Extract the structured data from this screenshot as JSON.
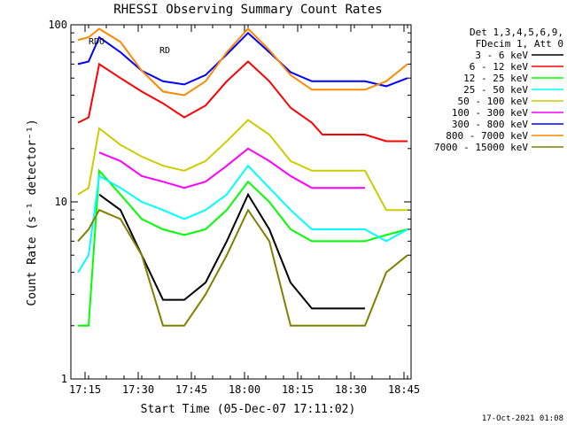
{
  "chart_data": {
    "type": "line",
    "title": "RHESSI Observing Summary Count Rates",
    "xlabel": "Start Time (05-Dec-07 17:11:02)",
    "ylabel": "Count Rate (s⁻¹ detector⁻¹)",
    "y_scale": "log",
    "ylim": [
      1,
      100
    ],
    "xlim_minutes": [
      0,
      96
    ],
    "x_ticks": [
      "17:15",
      "17:30",
      "17:45",
      "18:00",
      "18:15",
      "18:30",
      "18:45"
    ],
    "y_ticks": [
      "1",
      "10",
      "100"
    ],
    "grid": false,
    "legend_position": "right",
    "legend_header": [
      "Det 1,3,4,5,6,9,",
      "FDecim 1, Att 0"
    ],
    "footer_timestamp": "17-Oct-2021 01:08",
    "annotations": [
      "RDO",
      "RD"
    ],
    "x": [
      "17:13",
      "17:16",
      "17:19",
      "17:25",
      "17:31",
      "17:37",
      "17:43",
      "17:49",
      "17:55",
      "18:01",
      "18:07",
      "18:13",
      "18:19",
      "18:22",
      "18:28",
      "18:34",
      "18:40",
      "18:46"
    ],
    "series": [
      {
        "name": "3 - 6 keV",
        "color": "#000000",
        "values": [
          null,
          null,
          11,
          9,
          5,
          2.8,
          2.8,
          3.5,
          6,
          11,
          7,
          3.5,
          2.5,
          2.5,
          2.5,
          2.5,
          null,
          null
        ]
      },
      {
        "name": "6 - 12 keV",
        "color": "#ff0000",
        "values": [
          28,
          30,
          60,
          50,
          42,
          36,
          30,
          35,
          48,
          62,
          48,
          34,
          28,
          24,
          24,
          24,
          22,
          22
        ]
      },
      {
        "name": "12 - 25 keV",
        "color": "#00ff00",
        "values": [
          2,
          2,
          15,
          11,
          8,
          7,
          6.5,
          7,
          9,
          13,
          10,
          7,
          6,
          6,
          6,
          6,
          6.5,
          7
        ]
      },
      {
        "name": "25 - 50 keV",
        "color": "#00ffff",
        "values": [
          4,
          5,
          14,
          12,
          10,
          9,
          8,
          9,
          11,
          16,
          12,
          9,
          7,
          7,
          7,
          7,
          6,
          7
        ]
      },
      {
        "name": "50 - 100 keV",
        "color": "#cccc00",
        "values": [
          11,
          12,
          26,
          21,
          18,
          16,
          15,
          17,
          22,
          29,
          24,
          17,
          15,
          15,
          15,
          15,
          9,
          9
        ]
      },
      {
        "name": "100 - 300 keV",
        "color": "#ff00ff",
        "values": [
          null,
          null,
          19,
          17,
          14,
          13,
          12,
          13,
          16,
          20,
          17,
          14,
          12,
          12,
          12,
          12,
          null,
          null
        ]
      },
      {
        "name": "300 - 800 keV",
        "color": "#0000ff",
        "values": [
          60,
          62,
          85,
          70,
          55,
          48,
          46,
          52,
          68,
          90,
          70,
          54,
          48,
          48,
          48,
          48,
          45,
          50
        ]
      },
      {
        "name": "800 - 7000 keV",
        "color": "#ff8800",
        "values": [
          82,
          85,
          95,
          80,
          55,
          42,
          40,
          48,
          70,
          95,
          72,
          52,
          43,
          43,
          43,
          43,
          48,
          60
        ]
      },
      {
        "name": "7000 - 15000 keV",
        "color": "#808000",
        "values": [
          6,
          7,
          9,
          8,
          5,
          2,
          2,
          3,
          5,
          9,
          6,
          2,
          2,
          2,
          2,
          2,
          4,
          5
        ]
      }
    ]
  }
}
